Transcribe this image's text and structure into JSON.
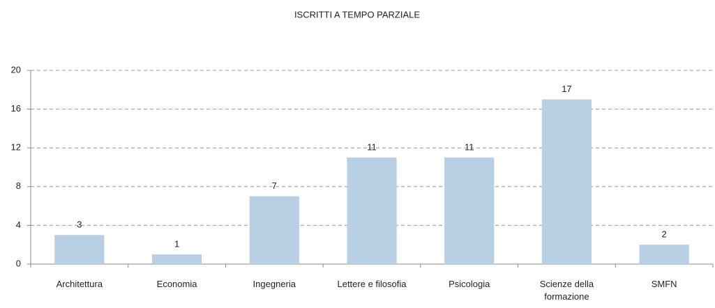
{
  "chart_data": {
    "type": "bar",
    "title": "ISCRITTI A TEMPO PARZIALE",
    "categories": [
      "Architettura",
      "Economia",
      "Ingegneria",
      "Lettere e filosofia",
      "Psicologia",
      "Scienze della formazione",
      "SMFN"
    ],
    "values": [
      3,
      1,
      7,
      11,
      11,
      17,
      2
    ],
    "color": "#b8cfe4",
    "ylim": [
      0,
      20
    ],
    "yticks": [
      0,
      4,
      8,
      12,
      16,
      20
    ],
    "grid": true,
    "data_labels": true
  }
}
